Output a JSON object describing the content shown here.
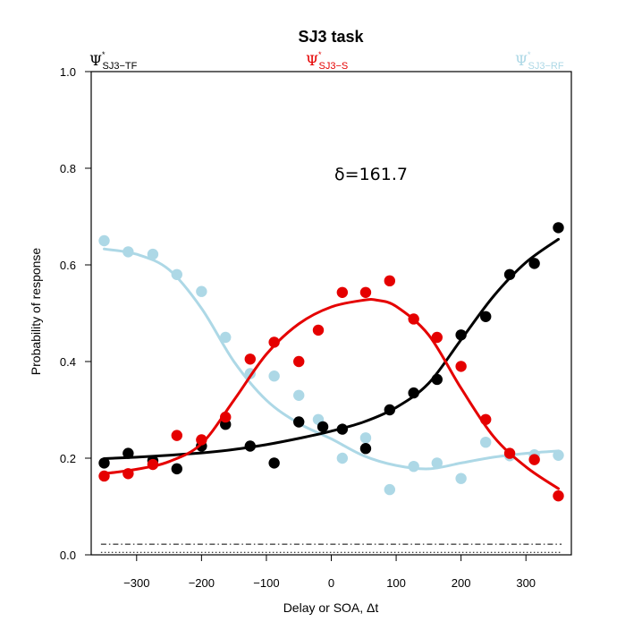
{
  "chart_data": {
    "type": "scatter",
    "title": "SJ3 task",
    "xlabel": "Delay or SOA, Δt",
    "ylabel": "Probability of response",
    "xlim": [
      -370,
      370
    ],
    "ylim": [
      0,
      1
    ],
    "x_ticks": [
      -300,
      -200,
      -100,
      0,
      100,
      200,
      300
    ],
    "x_tick_labels": [
      "−300",
      "−200",
      "−100",
      "0",
      "100",
      "200",
      "300"
    ],
    "y_ticks": [
      0,
      0.2,
      0.4,
      0.6,
      0.8,
      1.0
    ],
    "y_tick_labels": [
      "0.0",
      "0.2",
      "0.4",
      "0.6",
      "0.8",
      "1.0"
    ],
    "grid": false,
    "annotation": "δ=161.7",
    "legend": [
      {
        "symbol": "Ψ",
        "superscript": "*",
        "subscript": "SJ3−TF",
        "color": "#000000",
        "position": "top-left"
      },
      {
        "symbol": "Ψ",
        "superscript": "*",
        "subscript": "SJ3−S",
        "color": "#e50000",
        "position": "top-center"
      },
      {
        "symbol": "Ψ",
        "superscript": "*",
        "subscript": "SJ3−RF",
        "color": "#add8e6",
        "position": "top-right"
      }
    ],
    "series": [
      {
        "key": "tf",
        "color": "#000000",
        "x": [
          -350,
          -313,
          -275,
          -238,
          -200,
          -163,
          -125,
          -88,
          -50,
          -13,
          17,
          53,
          90,
          127,
          163,
          200,
          238,
          275,
          313,
          350
        ],
        "y": [
          0.19,
          0.21,
          0.195,
          0.178,
          0.225,
          0.27,
          0.225,
          0.19,
          0.275,
          0.265,
          0.26,
          0.22,
          0.3,
          0.335,
          0.363,
          0.455,
          0.493,
          0.58,
          0.603,
          0.677
        ],
        "fit_x": [
          -350,
          -300,
          -250,
          -200,
          -150,
          -100,
          -50,
          0,
          50,
          100,
          150,
          200,
          250,
          300,
          350
        ],
        "fit_y": [
          0.199,
          0.202,
          0.206,
          0.211,
          0.218,
          0.228,
          0.241,
          0.256,
          0.275,
          0.305,
          0.355,
          0.445,
          0.535,
          0.605,
          0.653
        ]
      },
      {
        "key": "s",
        "color": "#e50000",
        "x": [
          -350,
          -313,
          -275,
          -238,
          -200,
          -163,
          -125,
          -88,
          -50,
          -20,
          17,
          53,
          90,
          127,
          163,
          200,
          238,
          275,
          313,
          350
        ],
        "y": [
          0.163,
          0.168,
          0.187,
          0.247,
          0.238,
          0.285,
          0.405,
          0.44,
          0.4,
          0.465,
          0.543,
          0.543,
          0.567,
          0.488,
          0.45,
          0.39,
          0.28,
          0.21,
          0.197,
          0.122
        ],
        "fit_x": [
          -350,
          -300,
          -250,
          -200,
          -150,
          -100,
          -50,
          0,
          50,
          70,
          100,
          150,
          200,
          250,
          300,
          350
        ],
        "fit_y": [
          0.168,
          0.177,
          0.193,
          0.23,
          0.32,
          0.415,
          0.478,
          0.513,
          0.527,
          0.527,
          0.514,
          0.455,
          0.345,
          0.245,
          0.182,
          0.137
        ]
      },
      {
        "key": "rf",
        "color": "#add8e6",
        "x": [
          -350,
          -313,
          -275,
          -238,
          -200,
          -163,
          -125,
          -88,
          -50,
          -20,
          17,
          53,
          90,
          127,
          163,
          200,
          238,
          275,
          313,
          350
        ],
        "y": [
          0.65,
          0.627,
          0.622,
          0.58,
          0.545,
          0.45,
          0.375,
          0.37,
          0.33,
          0.28,
          0.2,
          0.242,
          0.135,
          0.183,
          0.19,
          0.158,
          0.233,
          0.205,
          0.207,
          0.206
        ],
        "fit_x": [
          -350,
          -300,
          -250,
          -200,
          -150,
          -100,
          -50,
          0,
          50,
          100,
          150,
          200,
          250,
          300,
          350
        ],
        "fit_y": [
          0.633,
          0.622,
          0.59,
          0.51,
          0.4,
          0.32,
          0.272,
          0.24,
          0.205,
          0.185,
          0.178,
          0.19,
          0.202,
          0.21,
          0.215
        ]
      }
    ],
    "reference_lines": [
      {
        "y": 0.022,
        "style": "dashdot"
      },
      {
        "y": 0.005,
        "style": "dotted"
      }
    ]
  }
}
